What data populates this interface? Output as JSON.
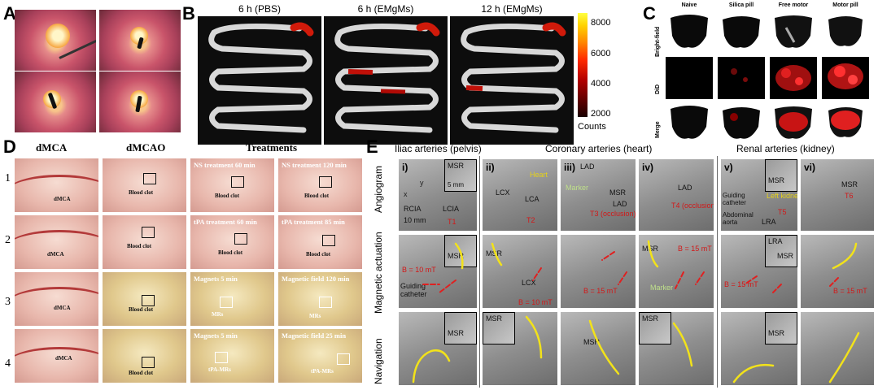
{
  "panels": {
    "A": {
      "letter": "A"
    },
    "B": {
      "letter": "B",
      "titles": [
        "6 h (PBS)",
        "6 h (EMgMs)",
        "12 h (EMgMs)"
      ],
      "colorbar": {
        "ticks": [
          "8000",
          "6000",
          "4000",
          "2000"
        ],
        "unit": "Counts"
      }
    },
    "C": {
      "letter": "C",
      "columns": [
        "Naive",
        "Silica pill",
        "Free motor",
        "Motor pill"
      ],
      "rows": [
        "Bright-field",
        "DiD",
        "Merge"
      ]
    },
    "D": {
      "letter": "D",
      "headers": [
        "dMCA",
        "dMCAO",
        "Treatments"
      ],
      "row_numbers": [
        "1",
        "2",
        "3",
        "4"
      ],
      "labels": {
        "dmca": "dMCA",
        "blood_clot": "Blood clot",
        "mrs": "MRs",
        "tpa_mrs": "tPA-MRs"
      },
      "treatments": [
        [
          "NS treatment 60 min",
          "NS treatment 120 min"
        ],
        [
          "tPA treatment 60 min",
          "tPA treatment 85 min"
        ],
        [
          "Magnets 5 min",
          "Magnetic field 120 min"
        ],
        [
          "Magnets 5 min",
          "Magnetic field 25 min"
        ]
      ]
    },
    "E": {
      "letter": "E",
      "headers": [
        "Iliac arteries (pelvis)",
        "Coronary arteries (heart)",
        "Renal arteries (kidney)"
      ],
      "rows": [
        "Angiogram",
        "Magnetic actuation",
        "Navigation"
      ],
      "romans": [
        "i)",
        "ii)",
        "iii)",
        "iv)",
        "v)",
        "vi)"
      ],
      "labels": {
        "msr": "MSR",
        "scale_5mm": "5 mm",
        "scale_10mm": "10 mm",
        "rcia": "RCIA",
        "lcia": "LCIA",
        "x": "x",
        "y": "y",
        "t1": "T1",
        "lcx": "LCX",
        "lca": "LCA",
        "heart": "Heart",
        "t2": "T2",
        "guiding_catheter": "Guiding catheter",
        "lad": "LAD",
        "marker": "Marker",
        "t3": "T3 (occlusion)",
        "t4": "T4 (occlusion)",
        "left_kidney": "Left kidney",
        "t5": "T5",
        "t6": "T6",
        "abdominal_aorta": "Abdominal aorta",
        "lra": "LRA",
        "b10": "B = 10 mT",
        "b15": "B = 15 mT"
      }
    }
  }
}
